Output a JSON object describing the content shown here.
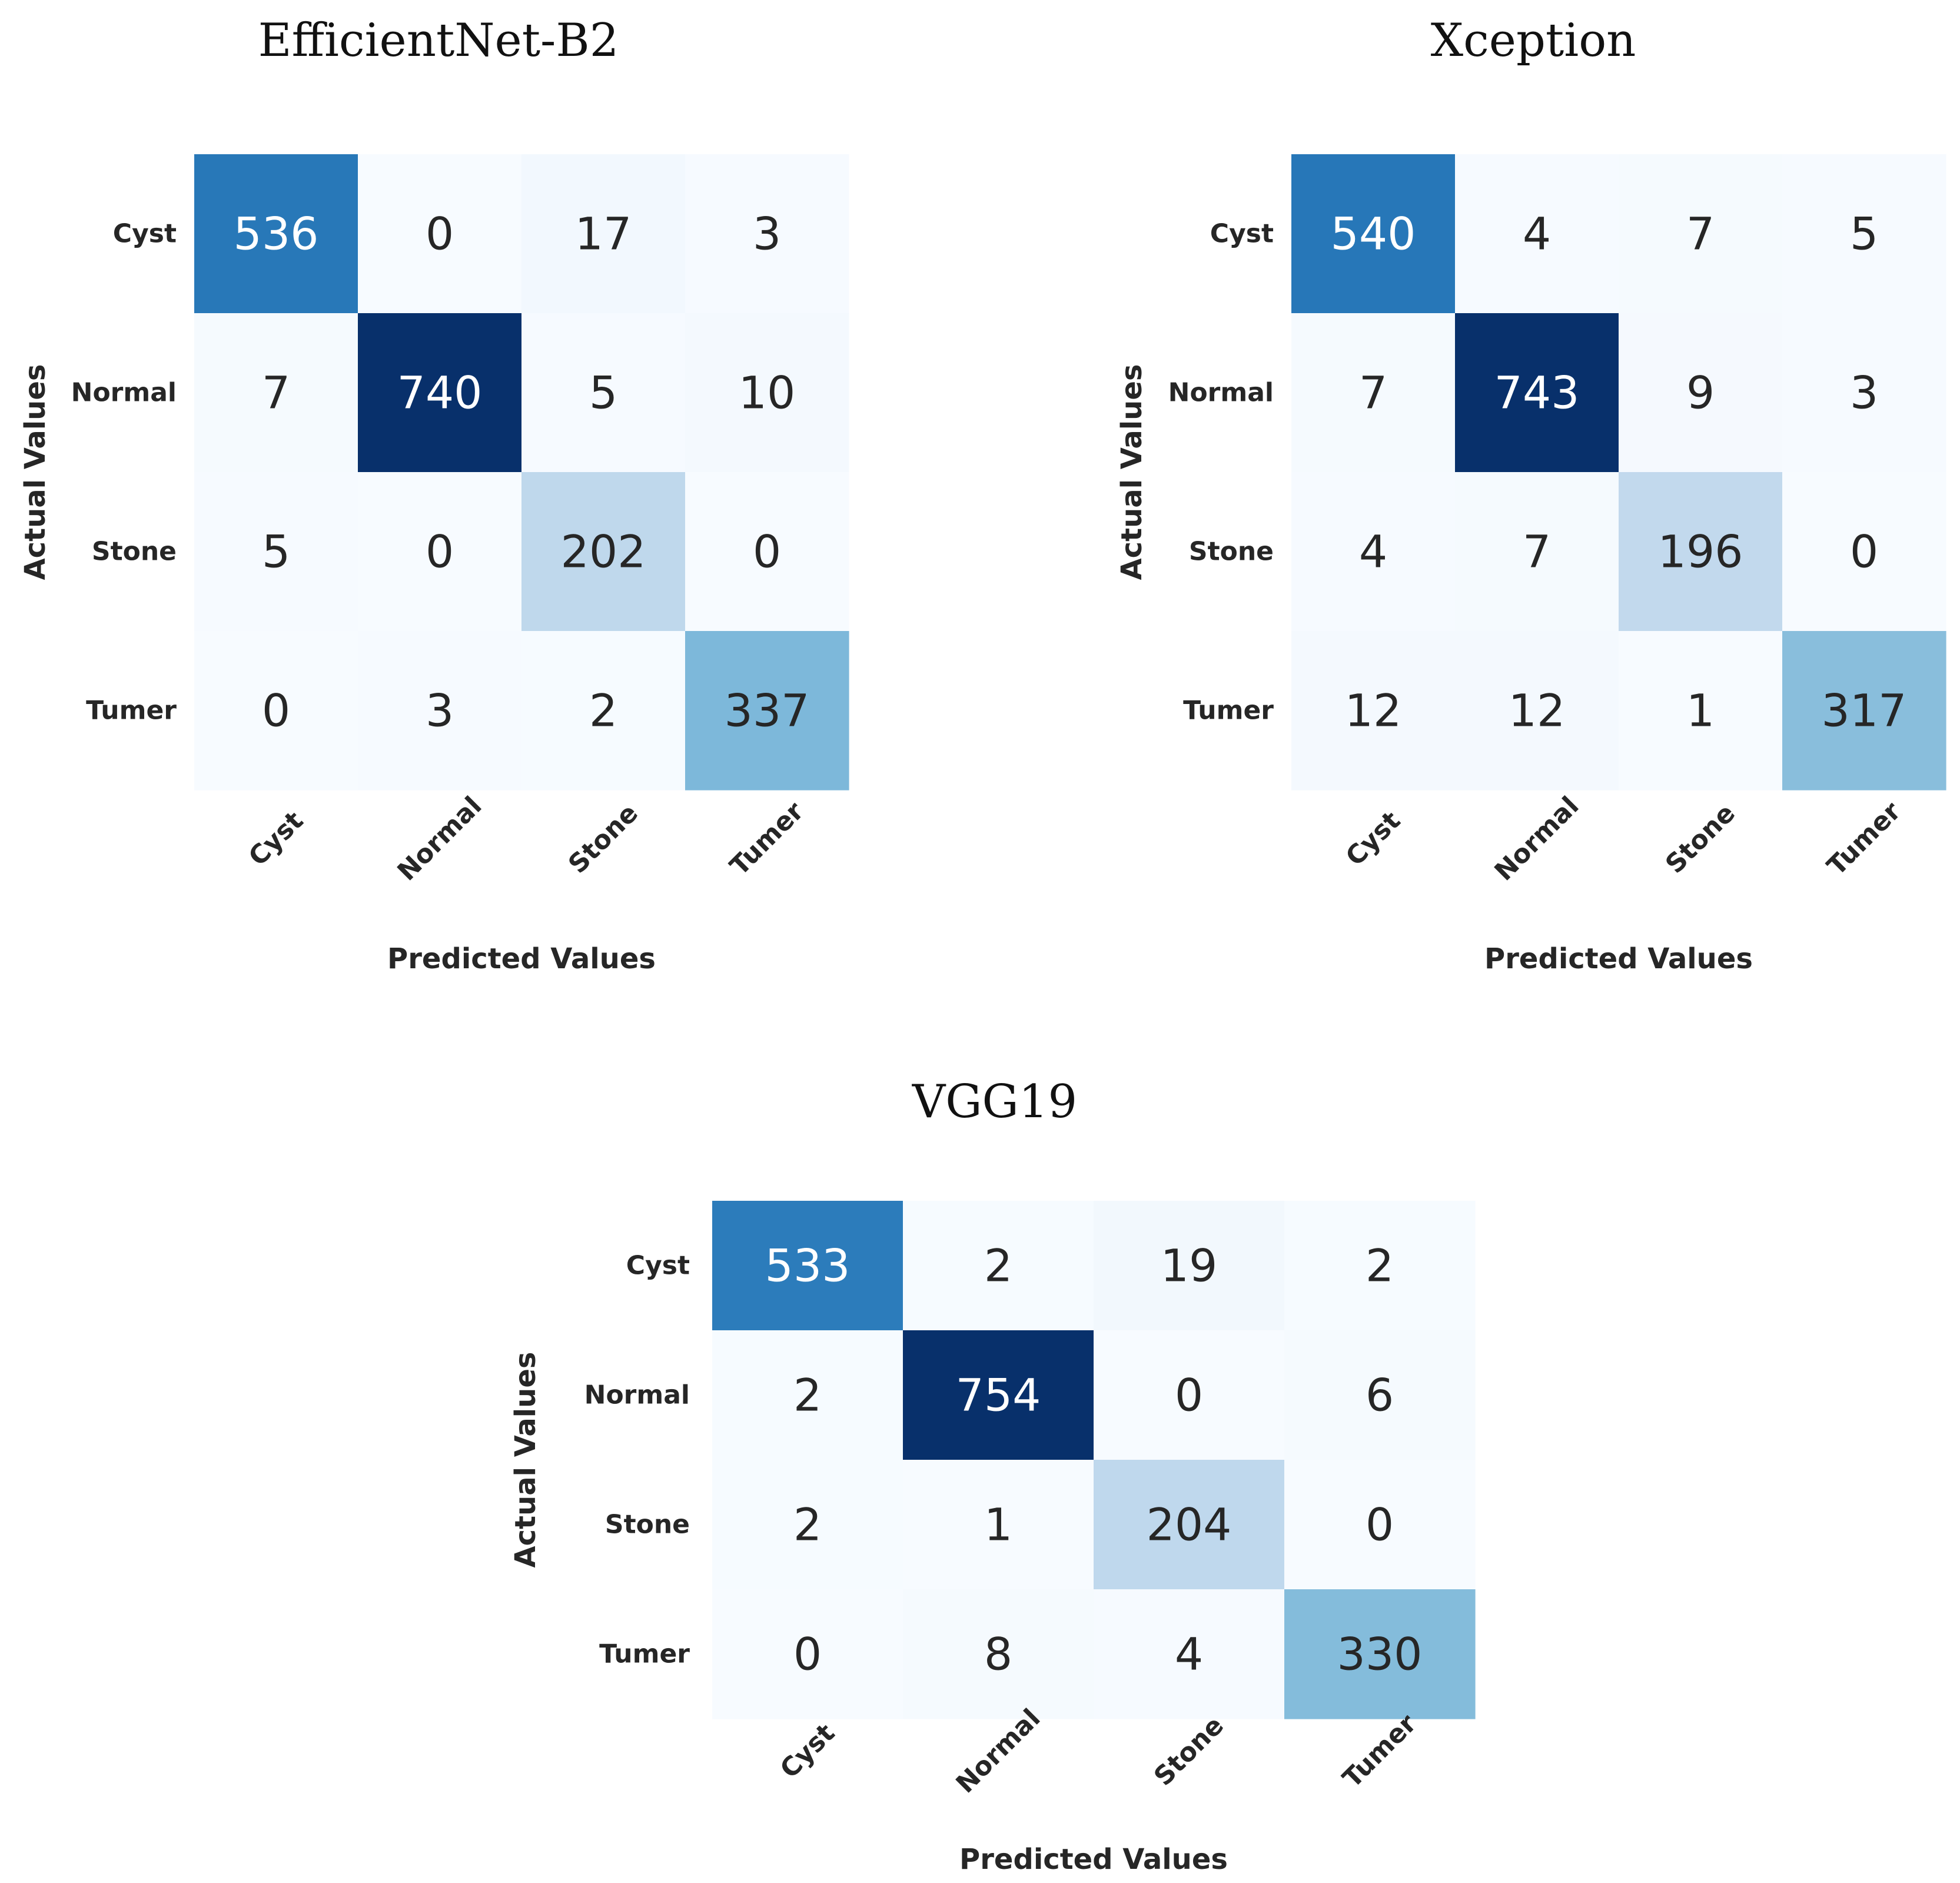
{
  "chart_data": [
    {
      "type": "heatmap",
      "title": "EfficientNet-B2",
      "xlabel": "Predicted Values",
      "ylabel": "Actual Values",
      "x_categories": [
        "Cyst",
        "Normal",
        "Stone",
        "Tumer"
      ],
      "y_categories": [
        "Cyst",
        "Normal",
        "Stone",
        "Tumer"
      ],
      "matrix": [
        [
          536,
          0,
          17,
          3
        ],
        [
          7,
          740,
          5,
          10
        ],
        [
          5,
          0,
          202,
          0
        ],
        [
          0,
          3,
          2,
          337
        ]
      ],
      "colormap": "Blues",
      "value_range": [
        0,
        740
      ]
    },
    {
      "type": "heatmap",
      "title": "Xception",
      "xlabel": "Predicted Values",
      "ylabel": "Actual Values",
      "x_categories": [
        "Cyst",
        "Normal",
        "Stone",
        "Tumer"
      ],
      "y_categories": [
        "Cyst",
        "Normal",
        "Stone",
        "Tumer"
      ],
      "matrix": [
        [
          540,
          4,
          7,
          5
        ],
        [
          7,
          743,
          9,
          3
        ],
        [
          4,
          7,
          196,
          0
        ],
        [
          12,
          12,
          1,
          317
        ]
      ],
      "colormap": "Blues",
      "value_range": [
        0,
        743
      ]
    },
    {
      "type": "heatmap",
      "title": "VGG19",
      "xlabel": "Predicted Values",
      "ylabel": "Actual Values",
      "x_categories": [
        "Cyst",
        "Normal",
        "Stone",
        "Tumer"
      ],
      "y_categories": [
        "Cyst",
        "Normal",
        "Stone",
        "Tumer"
      ],
      "matrix": [
        [
          533,
          2,
          19,
          2
        ],
        [
          2,
          754,
          0,
          6
        ],
        [
          2,
          1,
          204,
          0
        ],
        [
          0,
          8,
          4,
          330
        ]
      ],
      "colormap": "Blues",
      "value_range": [
        0,
        754
      ]
    }
  ]
}
